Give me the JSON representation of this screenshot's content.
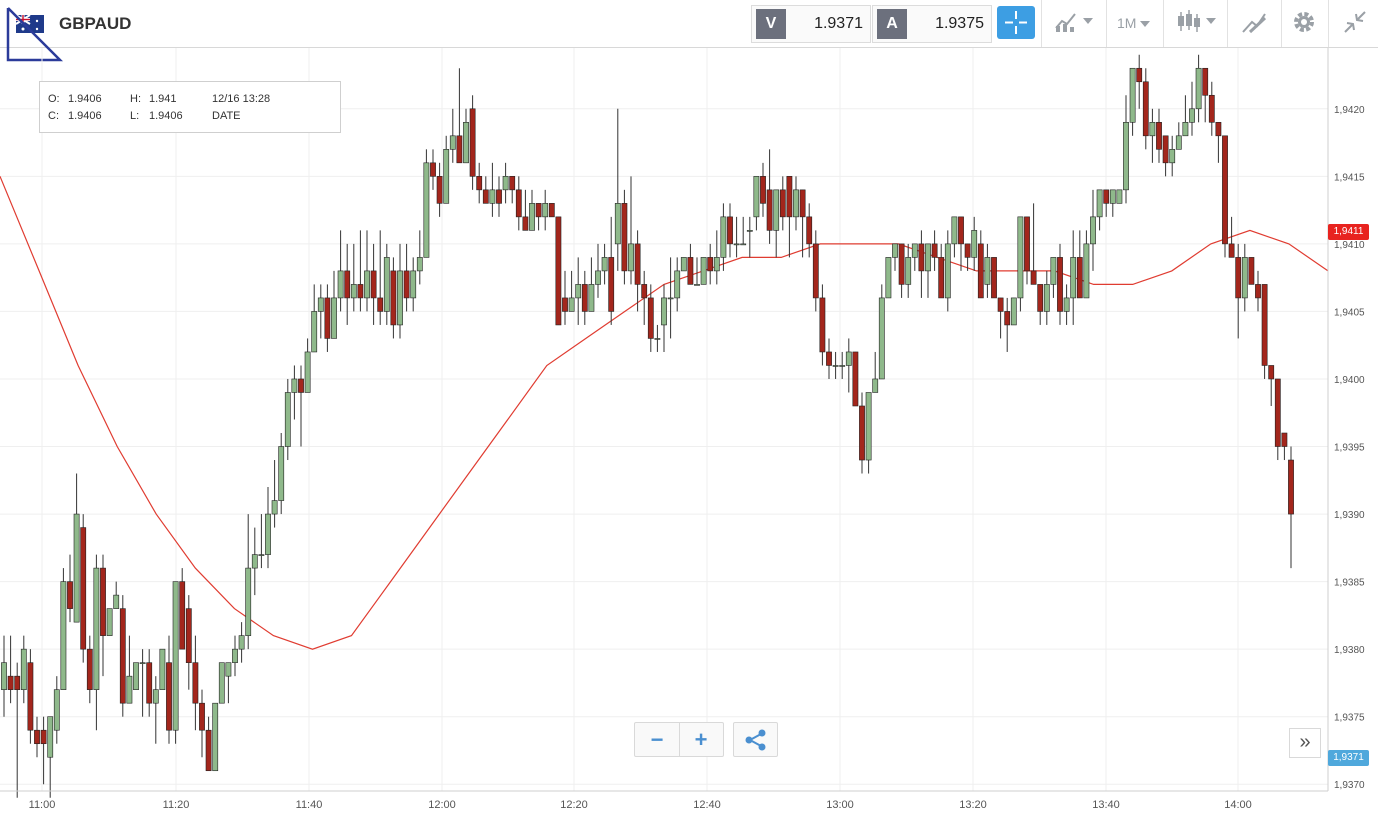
{
  "header": {
    "symbol": "GBPAUD",
    "flag_icon": "gb-au-flag-icon",
    "sell_tag": "V",
    "sell_price": "1.9371",
    "buy_tag": "A",
    "buy_price": "1.9375",
    "timeframe": "1M",
    "icons": [
      "crosshair-icon",
      "indicators-icon",
      "timeframe-selector",
      "candlestick-type-icon",
      "drawing-tools-icon",
      "gear-icon",
      "collapse-icon"
    ],
    "accent": "#3d9ee3"
  },
  "ohlc_box": {
    "o_label": "O:",
    "o_value": "1.9406",
    "h_label": "H:",
    "h_value": "1.941",
    "c_label": "C:",
    "c_value": "1.9406",
    "l_label": "L:",
    "l_value": "1.9406",
    "datetime": "12/16 13:28",
    "date_label": "DATE"
  },
  "controls": {
    "zoom_out": "−",
    "zoom_in": "+",
    "share_icon": "share-icon",
    "scroll_forward": "»"
  },
  "chart_data": {
    "type": "candlestick",
    "symbol": "GBPAUD",
    "interval": "1M",
    "x_ticks": [
      "11:00",
      "11:20",
      "11:40",
      "12:00",
      "12:20",
      "12:40",
      "13:00",
      "13:20",
      "13:40",
      "14:00"
    ],
    "y_ticks": [
      "1,9370",
      "1,9375",
      "1,9380",
      "1,9385",
      "1,9390",
      "1,9395",
      "1,9400",
      "1,9405",
      "1,9410",
      "1,9415",
      "1,9420"
    ],
    "ylim": [
      1.93695,
      1.94245
    ],
    "grid": true,
    "up_color": "#8fb98b",
    "down_color": "#a3261c",
    "ma_color": "#e03c31",
    "current_ma_label": "1,9411",
    "current_bid_label": "1,9371",
    "candles": [
      [
        1.9377,
        1.9379,
        1.9381,
        1.9375
      ],
      [
        1.9378,
        1.9377,
        1.9381,
        1.9376
      ],
      [
        1.9378,
        1.9377,
        1.9379,
        1.9369
      ],
      [
        1.9377,
        1.938,
        1.9381,
        1.9376
      ],
      [
        1.9379,
        1.9374,
        1.938,
        1.9373
      ],
      [
        1.9374,
        1.9373,
        1.9375,
        1.9372
      ],
      [
        1.9374,
        1.9373,
        1.9375,
        1.937
      ],
      [
        1.9372,
        1.9375,
        1.9375,
        1.9369
      ],
      [
        1.9374,
        1.9377,
        1.9378,
        1.9373
      ],
      [
        1.9377,
        1.9385,
        1.9386,
        1.9377
      ],
      [
        1.9385,
        1.9383,
        1.9387,
        1.9382
      ],
      [
        1.9382,
        1.939,
        1.9393,
        1.9382
      ],
      [
        1.9389,
        1.938,
        1.939,
        1.9379
      ],
      [
        1.938,
        1.9377,
        1.9381,
        1.9376
      ],
      [
        1.9377,
        1.9386,
        1.9387,
        1.9374
      ],
      [
        1.9386,
        1.9381,
        1.9387,
        1.9378
      ],
      [
        1.9381,
        1.9383,
        1.9383,
        1.9381
      ],
      [
        1.9383,
        1.9384,
        1.9385,
        1.9383
      ],
      [
        1.9383,
        1.9376,
        1.9384,
        1.9375
      ],
      [
        1.9376,
        1.9378,
        1.9381,
        1.9376
      ],
      [
        1.9377,
        1.9379,
        1.9379,
        1.9378
      ],
      [
        1.9379,
        1.9379,
        1.938,
        1.9375
      ],
      [
        1.9379,
        1.9376,
        1.938,
        1.9375
      ],
      [
        1.9376,
        1.9377,
        1.9378,
        1.9373
      ],
      [
        1.9377,
        1.938,
        1.938,
        1.9377
      ],
      [
        1.9379,
        1.9374,
        1.9381,
        1.9373
      ],
      [
        1.9374,
        1.9385,
        1.9385,
        1.9373
      ],
      [
        1.9385,
        1.938,
        1.9386,
        1.938
      ],
      [
        1.9383,
        1.9379,
        1.9384,
        1.9377
      ],
      [
        1.9379,
        1.9376,
        1.9381,
        1.9374
      ],
      [
        1.9376,
        1.9374,
        1.9377,
        1.9372
      ],
      [
        1.9374,
        1.9371,
        1.9375,
        1.9371
      ],
      [
        1.9371,
        1.9376,
        1.9376,
        1.9371
      ],
      [
        1.9376,
        1.9379,
        1.9379,
        1.9376
      ],
      [
        1.9378,
        1.9379,
        1.9379,
        1.9376
      ],
      [
        1.9379,
        1.938,
        1.9381,
        1.9378
      ],
      [
        1.938,
        1.9381,
        1.9382,
        1.9379
      ],
      [
        1.9381,
        1.9386,
        1.939,
        1.938
      ],
      [
        1.9386,
        1.9387,
        1.9389,
        1.9384
      ],
      [
        1.9387,
        1.9387,
        1.939,
        1.9386
      ],
      [
        1.9387,
        1.939,
        1.9392,
        1.9386
      ],
      [
        1.939,
        1.9391,
        1.9394,
        1.9389
      ],
      [
        1.9391,
        1.9395,
        1.9396,
        1.939
      ],
      [
        1.9395,
        1.9399,
        1.94,
        1.9394
      ],
      [
        1.9399,
        1.94,
        1.9401,
        1.9397
      ],
      [
        1.94,
        1.9399,
        1.9401,
        1.9395
      ],
      [
        1.9399,
        1.9402,
        1.9403,
        1.9399
      ],
      [
        1.9402,
        1.9405,
        1.9407,
        1.9402
      ],
      [
        1.9405,
        1.9406,
        1.9407,
        1.9403
      ],
      [
        1.9406,
        1.9403,
        1.9407,
        1.9402
      ],
      [
        1.9403,
        1.9406,
        1.9408,
        1.9403
      ],
      [
        1.9406,
        1.9408,
        1.9411,
        1.9405
      ],
      [
        1.9408,
        1.9406,
        1.941,
        1.9404
      ],
      [
        1.9406,
        1.9407,
        1.941,
        1.9405
      ],
      [
        1.9407,
        1.9406,
        1.9411,
        1.9405
      ],
      [
        1.9406,
        1.9408,
        1.9411,
        1.9405
      ],
      [
        1.9408,
        1.9406,
        1.941,
        1.9404
      ],
      [
        1.9406,
        1.9405,
        1.9411,
        1.9404
      ],
      [
        1.9405,
        1.9409,
        1.941,
        1.9404
      ],
      [
        1.9408,
        1.9404,
        1.9409,
        1.9403
      ],
      [
        1.9404,
        1.9408,
        1.941,
        1.9403
      ],
      [
        1.9408,
        1.9406,
        1.941,
        1.9405
      ],
      [
        1.9406,
        1.9408,
        1.9409,
        1.9405
      ],
      [
        1.9408,
        1.9409,
        1.9411,
        1.9407
      ],
      [
        1.9409,
        1.9416,
        1.9417,
        1.9409
      ],
      [
        1.9416,
        1.9415,
        1.9417,
        1.9414
      ],
      [
        1.9415,
        1.9413,
        1.9416,
        1.9412
      ],
      [
        1.9413,
        1.9417,
        1.9418,
        1.9413
      ],
      [
        1.9417,
        1.9418,
        1.942,
        1.9416
      ],
      [
        1.9418,
        1.9416,
        1.9423,
        1.9416
      ],
      [
        1.9416,
        1.9419,
        1.942,
        1.9416
      ],
      [
        1.942,
        1.9415,
        1.9421,
        1.9414
      ],
      [
        1.9415,
        1.9414,
        1.9416,
        1.9413
      ],
      [
        1.9414,
        1.9413,
        1.9415,
        1.9413
      ],
      [
        1.9413,
        1.9414,
        1.9416,
        1.9412
      ],
      [
        1.9414,
        1.9413,
        1.9415,
        1.9412
      ],
      [
        1.9414,
        1.9415,
        1.9416,
        1.9413
      ],
      [
        1.9415,
        1.9414,
        1.9415,
        1.9413
      ],
      [
        1.9414,
        1.9412,
        1.9415,
        1.9411
      ],
      [
        1.9412,
        1.9411,
        1.9414,
        1.9411
      ],
      [
        1.9411,
        1.9413,
        1.9414,
        1.9411
      ],
      [
        1.9413,
        1.9412,
        1.9413,
        1.9411
      ],
      [
        1.9412,
        1.9413,
        1.9414,
        1.9411
      ],
      [
        1.9413,
        1.9412,
        1.9413,
        1.9412
      ],
      [
        1.9412,
        1.9404,
        1.9412,
        1.9404
      ],
      [
        1.9406,
        1.9405,
        1.9408,
        1.9404
      ],
      [
        1.9405,
        1.9406,
        1.9408,
        1.9405
      ],
      [
        1.9406,
        1.9407,
        1.9409,
        1.9404
      ],
      [
        1.9407,
        1.9405,
        1.9408,
        1.9404
      ],
      [
        1.9405,
        1.9407,
        1.9409,
        1.9405
      ],
      [
        1.9407,
        1.9408,
        1.941,
        1.9406
      ],
      [
        1.9408,
        1.9409,
        1.941,
        1.9407
      ],
      [
        1.9409,
        1.9405,
        1.9412,
        1.9404
      ],
      [
        1.941,
        1.9413,
        1.942,
        1.9408
      ],
      [
        1.9413,
        1.9408,
        1.9414,
        1.9407
      ],
      [
        1.9408,
        1.941,
        1.9415,
        1.9407
      ],
      [
        1.941,
        1.9407,
        1.9411,
        1.9405
      ],
      [
        1.9407,
        1.9406,
        1.9408,
        1.9404
      ],
      [
        1.9406,
        1.9403,
        1.9407,
        1.9402
      ],
      [
        1.9403,
        1.9403,
        1.9404,
        1.9402
      ],
      [
        1.9404,
        1.9406,
        1.9407,
        1.9402
      ],
      [
        1.9406,
        1.9406,
        1.9409,
        1.9403
      ],
      [
        1.9406,
        1.9408,
        1.9409,
        1.9405
      ],
      [
        1.9408,
        1.9409,
        1.9409,
        1.9408
      ],
      [
        1.9409,
        1.9407,
        1.941,
        1.9407
      ],
      [
        1.9407,
        1.9407,
        1.9409,
        1.9407
      ],
      [
        1.9407,
        1.9409,
        1.9409,
        1.9407
      ],
      [
        1.9409,
        1.9408,
        1.941,
        1.9407
      ],
      [
        1.9408,
        1.9409,
        1.9411,
        1.9407
      ],
      [
        1.9409,
        1.9412,
        1.9413,
        1.9408
      ],
      [
        1.9412,
        1.941,
        1.9413,
        1.9409
      ],
      [
        1.941,
        1.941,
        1.9412,
        1.9409
      ],
      [
        1.941,
        1.941,
        1.9412,
        1.941
      ],
      [
        1.9411,
        1.9411,
        1.9412,
        1.9409
      ],
      [
        1.9412,
        1.9415,
        1.9415,
        1.9411
      ],
      [
        1.9415,
        1.9413,
        1.9416,
        1.9412
      ],
      [
        1.9414,
        1.9411,
        1.9417,
        1.941
      ],
      [
        1.9411,
        1.9414,
        1.9414,
        1.9409
      ],
      [
        1.9414,
        1.9412,
        1.9415,
        1.9411
      ],
      [
        1.9415,
        1.9412,
        1.9415,
        1.9409
      ],
      [
        1.9412,
        1.9414,
        1.9415,
        1.9411
      ],
      [
        1.9414,
        1.9412,
        1.9414,
        1.9409
      ],
      [
        1.9412,
        1.941,
        1.9413,
        1.9409
      ],
      [
        1.941,
        1.9406,
        1.9411,
        1.9405
      ],
      [
        1.9406,
        1.9402,
        1.9407,
        1.9401
      ],
      [
        1.9402,
        1.9401,
        1.9403,
        1.94
      ],
      [
        1.9401,
        1.9401,
        1.9402,
        1.94
      ],
      [
        1.9401,
        1.9401,
        1.9402,
        1.94
      ],
      [
        1.9401,
        1.9402,
        1.9403,
        1.9399
      ],
      [
        1.9402,
        1.9398,
        1.9402,
        1.9398
      ],
      [
        1.9398,
        1.9394,
        1.9399,
        1.9393
      ],
      [
        1.9394,
        1.9399,
        1.9399,
        1.9393
      ],
      [
        1.9399,
        1.94,
        1.9402,
        1.9399
      ],
      [
        1.94,
        1.9406,
        1.9407,
        1.94
      ],
      [
        1.9406,
        1.9409,
        1.9409,
        1.9406
      ],
      [
        1.9409,
        1.941,
        1.941,
        1.9408
      ],
      [
        1.941,
        1.9407,
        1.941,
        1.9406
      ],
      [
        1.9407,
        1.9409,
        1.941,
        1.9406
      ],
      [
        1.9409,
        1.941,
        1.941,
        1.9408
      ],
      [
        1.941,
        1.9408,
        1.9411,
        1.9406
      ],
      [
        1.9408,
        1.941,
        1.941,
        1.9406
      ],
      [
        1.941,
        1.9409,
        1.9411,
        1.9408
      ],
      [
        1.9409,
        1.9406,
        1.941,
        1.9406
      ],
      [
        1.9406,
        1.941,
        1.9411,
        1.9405
      ],
      [
        1.941,
        1.9412,
        1.9412,
        1.9409
      ],
      [
        1.9412,
        1.941,
        1.9412,
        1.9408
      ],
      [
        1.941,
        1.9409,
        1.941,
        1.9408
      ],
      [
        1.9409,
        1.9411,
        1.9412,
        1.9408
      ],
      [
        1.941,
        1.9406,
        1.9411,
        1.9406
      ],
      [
        1.9407,
        1.9409,
        1.941,
        1.9406
      ],
      [
        1.9409,
        1.9406,
        1.9409,
        1.9406
      ],
      [
        1.9406,
        1.9405,
        1.9406,
        1.9403
      ],
      [
        1.9405,
        1.9404,
        1.9406,
        1.9402
      ],
      [
        1.9404,
        1.9406,
        1.9406,
        1.9404
      ],
      [
        1.9406,
        1.9412,
        1.9412,
        1.9405
      ],
      [
        1.9412,
        1.9408,
        1.9412,
        1.9407
      ],
      [
        1.9408,
        1.9407,
        1.9413,
        1.9407
      ],
      [
        1.9407,
        1.9405,
        1.9407,
        1.9404
      ],
      [
        1.9405,
        1.9407,
        1.9408,
        1.9404
      ],
      [
        1.9407,
        1.9409,
        1.9409,
        1.9406
      ],
      [
        1.9409,
        1.9405,
        1.941,
        1.9404
      ],
      [
        1.9405,
        1.9406,
        1.9407,
        1.9404
      ],
      [
        1.9406,
        1.9409,
        1.9411,
        1.9404
      ],
      [
        1.9409,
        1.9406,
        1.9411,
        1.9406
      ],
      [
        1.9406,
        1.941,
        1.9411,
        1.9406
      ],
      [
        1.941,
        1.9412,
        1.9414,
        1.9408
      ],
      [
        1.9412,
        1.9414,
        1.9414,
        1.9411
      ],
      [
        1.9414,
        1.9413,
        1.9414,
        1.9412
      ],
      [
        1.9413,
        1.9414,
        1.9414,
        1.9412
      ],
      [
        1.9413,
        1.9414,
        1.9414,
        1.9413
      ],
      [
        1.9414,
        1.9419,
        1.9421,
        1.9413
      ],
      [
        1.9419,
        1.9423,
        1.9423,
        1.9418
      ],
      [
        1.9423,
        1.9422,
        1.9424,
        1.942
      ],
      [
        1.9422,
        1.9418,
        1.9423,
        1.9417
      ],
      [
        1.9418,
        1.9419,
        1.942,
        1.9416
      ],
      [
        1.9419,
        1.9417,
        1.942,
        1.9416
      ],
      [
        1.9418,
        1.9416,
        1.9418,
        1.9415
      ],
      [
        1.9416,
        1.9417,
        1.9418,
        1.9415
      ],
      [
        1.9417,
        1.9418,
        1.9419,
        1.9417
      ],
      [
        1.9418,
        1.9419,
        1.9421,
        1.9418
      ],
      [
        1.9419,
        1.942,
        1.9422,
        1.9418
      ],
      [
        1.942,
        1.9423,
        1.9424,
        1.9419
      ],
      [
        1.9423,
        1.9421,
        1.9423,
        1.9419
      ],
      [
        1.9421,
        1.9419,
        1.9422,
        1.9418
      ],
      [
        1.9419,
        1.9418,
        1.9419,
        1.9416
      ],
      [
        1.9418,
        1.941,
        1.9418,
        1.9409
      ],
      [
        1.941,
        1.9409,
        1.9412,
        1.9409
      ],
      [
        1.9409,
        1.9406,
        1.941,
        1.9403
      ],
      [
        1.9406,
        1.9409,
        1.941,
        1.9405
      ],
      [
        1.9409,
        1.9407,
        1.9409,
        1.9407
      ],
      [
        1.9407,
        1.9406,
        1.9408,
        1.9405
      ],
      [
        1.9407,
        1.9401,
        1.9407,
        1.94
      ],
      [
        1.9401,
        1.94,
        1.9401,
        1.9398
      ],
      [
        1.94,
        1.9395,
        1.94,
        1.9394
      ],
      [
        1.9396,
        1.9395,
        1.9396,
        1.9394
      ],
      [
        1.9394,
        1.939,
        1.9395,
        1.9386
      ]
    ],
    "ma": [
      1.9415,
      1.9408,
      1.9401,
      1.9395,
      1.939,
      1.9386,
      1.9383,
      1.9381,
      1.938,
      1.9381,
      1.9385,
      1.9389,
      1.9393,
      1.9397,
      1.9401,
      1.9403,
      1.9405,
      1.9407,
      1.9408,
      1.9409,
      1.9409,
      1.941,
      1.941,
      1.941,
      1.9409,
      1.9408,
      1.9408,
      1.9408,
      1.9407,
      1.9407,
      1.9408,
      1.941,
      1.9411,
      1.941,
      1.9408
    ]
  }
}
